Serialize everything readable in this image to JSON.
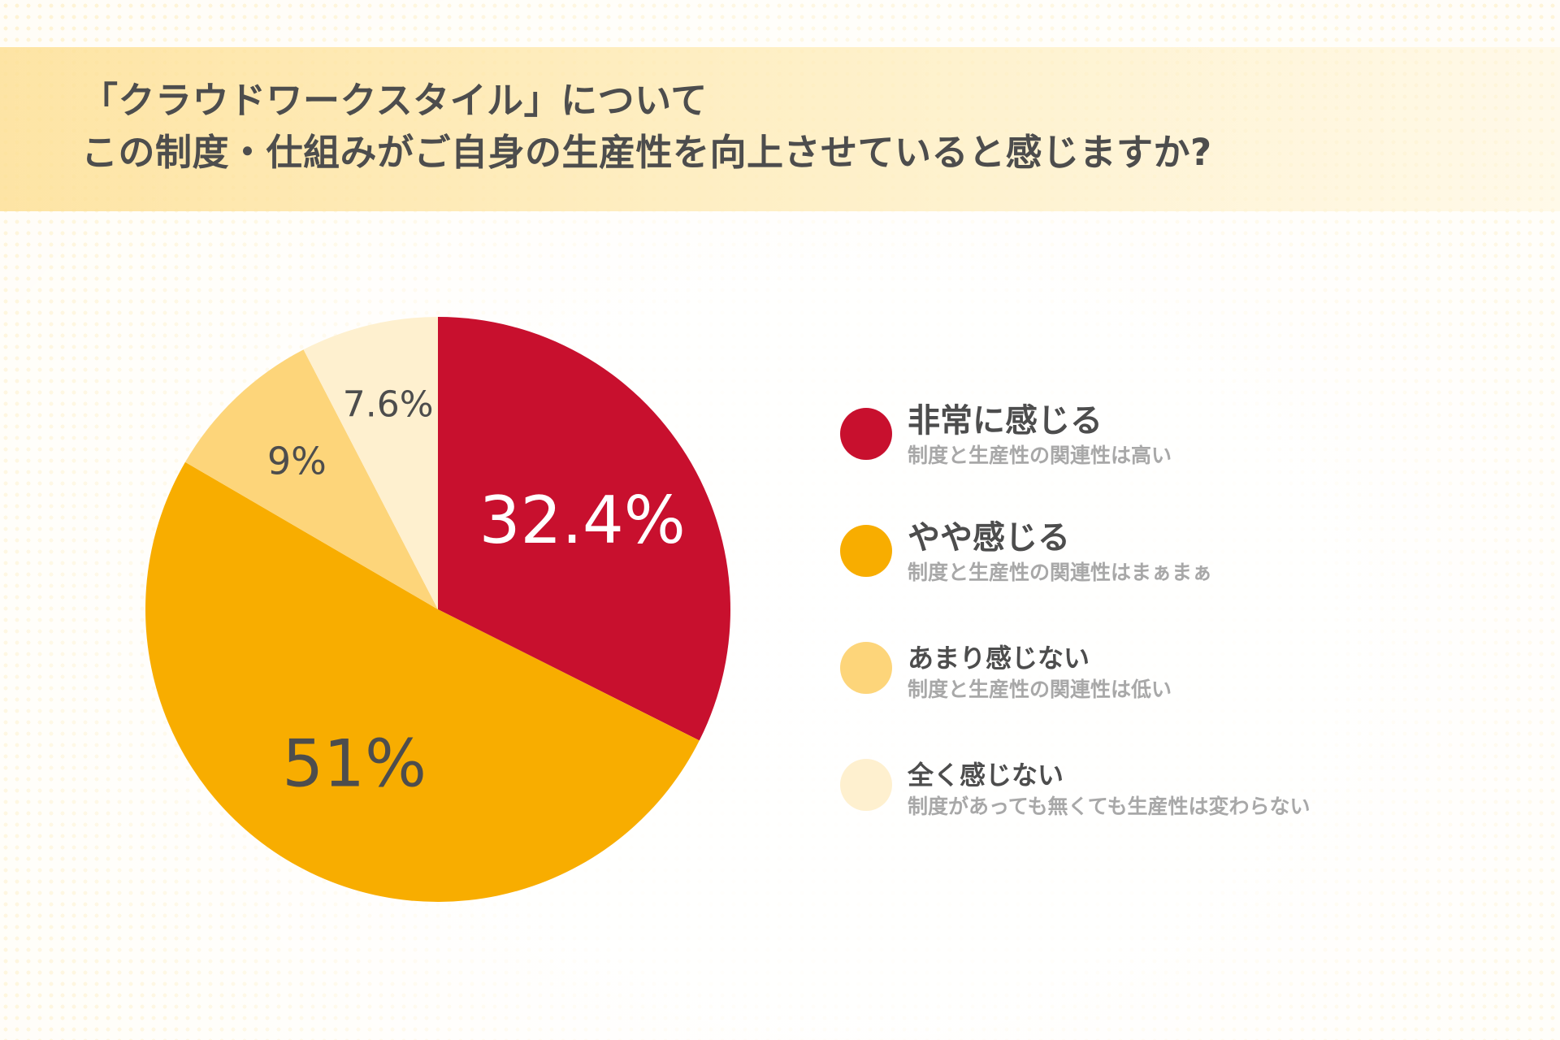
{
  "title_lines": [
    "「クラウドワークスタイル」について",
    "この制度・仕組みがご自身の生産性を向上させていると感じますか?"
  ],
  "chart_data": {
    "type": "pie",
    "title": "",
    "slices": [
      {
        "label": "非常に感じる",
        "description": "制度と生産性の関連性は高い",
        "value": 32.4,
        "value_label": "32.4%",
        "color": "#c8102e",
        "label_color": "#ffffff"
      },
      {
        "label": "やや感じる",
        "description": "制度と生産性の関連性はまぁまぁ",
        "value": 51,
        "value_label": "51%",
        "color": "#f8ad00",
        "label_color": "#4d4d4d"
      },
      {
        "label": "あまり感じない",
        "description": "制度と生産性の関連性は低い",
        "value": 9,
        "value_label": "9%",
        "color": "#fdd57a",
        "label_color": "#4d4d4d"
      },
      {
        "label": "全く感じない",
        "description": "制度があっても無くても生産性は変わらない",
        "value": 7.6,
        "value_label": "7.6%",
        "color": "#fef0cf",
        "label_color": "#4d4d4d"
      }
    ],
    "legend_position": "right",
    "start_angle": "12 o'clock",
    "direction": "clockwise"
  },
  "legend": {
    "items": [
      {
        "label": "非常に感じる",
        "description": "制度と生産性の関連性は高い",
        "color": "#c8102e"
      },
      {
        "label": "やや感じる",
        "description": "制度と生産性の関連性はまぁまぁ",
        "color": "#f8ad00"
      },
      {
        "label": "あまり感じない",
        "description": "制度と生産性の関連性は低い",
        "color": "#fdd57a"
      },
      {
        "label": "全く感じない",
        "description": "制度があっても無くても生産性は変わらない",
        "color": "#fef0cf"
      }
    ]
  }
}
